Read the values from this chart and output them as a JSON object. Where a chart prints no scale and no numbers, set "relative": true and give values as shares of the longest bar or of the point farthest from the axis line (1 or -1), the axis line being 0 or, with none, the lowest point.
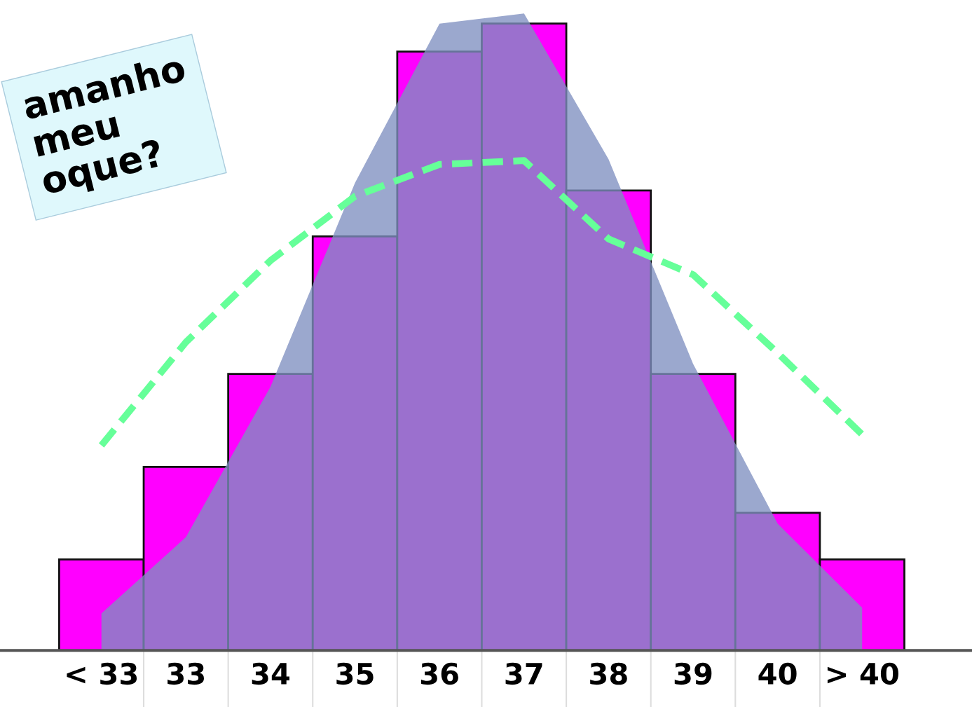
{
  "chart_data": {
    "type": "bar",
    "relative": true,
    "categories": [
      "< 33",
      "33",
      "34",
      "35",
      "36",
      "37",
      "38",
      "39",
      "40",
      "> 40"
    ],
    "annotations": [
      "amanho\nmeu\noque?"
    ],
    "legend": false,
    "grid": false,
    "series": [
      {
        "color": "#ff00ff",
        "values": [
          0.143,
          0.288,
          0.434,
          0.65,
          0.94,
          0.984,
          0.722,
          0.434,
          0.216,
          0.143
        ]
      },
      {
        "type": "area",
        "color": "#7f8fc0",
        "values": [
          0.058,
          0.178,
          0.414,
          0.734,
          0.984,
          1,
          0.771,
          0.45,
          0.199,
          0.067
        ]
      },
      {
        "type": "line",
        "color": "#66ff99",
        "line_style": "dashed",
        "values": [
          0.322,
          0.484,
          0.612,
          0.713,
          0.763,
          0.769,
          0.646,
          0.59,
          0.467,
          0.339
        ]
      }
    ]
  }
}
